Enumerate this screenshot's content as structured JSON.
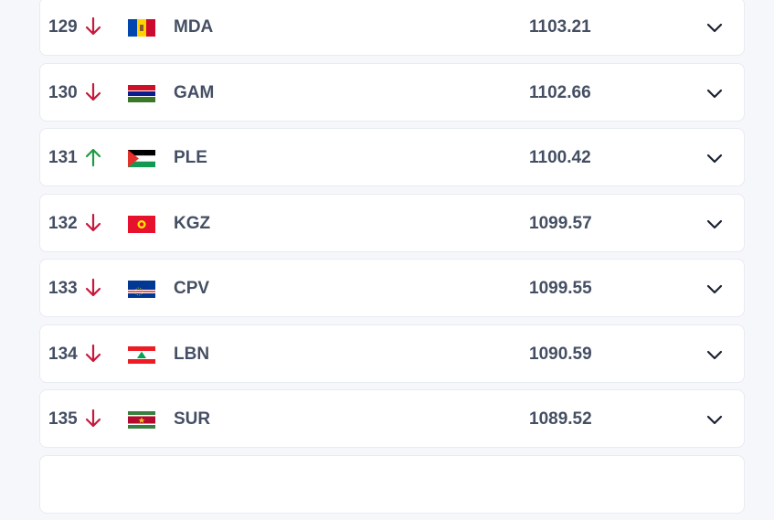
{
  "colors": {
    "down": "#c8183c",
    "up": "#1f9b45",
    "text": "#454f63"
  },
  "rows": [
    {
      "rank": "129",
      "trend": "down",
      "flag": "moldova-flag",
      "code": "MDA",
      "points": "1103.21"
    },
    {
      "rank": "130",
      "trend": "down",
      "flag": "gambia-flag",
      "code": "GAM",
      "points": "1102.66"
    },
    {
      "rank": "131",
      "trend": "up",
      "flag": "palestine-flag",
      "code": "PLE",
      "points": "1100.42"
    },
    {
      "rank": "132",
      "trend": "down",
      "flag": "kyrgyzstan-flag",
      "code": "KGZ",
      "points": "1099.57"
    },
    {
      "rank": "133",
      "trend": "down",
      "flag": "cape-verde-flag",
      "code": "CPV",
      "points": "1099.55"
    },
    {
      "rank": "134",
      "trend": "down",
      "flag": "lebanon-flag",
      "code": "LBN",
      "points": "1090.59"
    },
    {
      "rank": "135",
      "trend": "down",
      "flag": "suriname-flag",
      "code": "SUR",
      "points": "1089.52"
    },
    {
      "rank": "",
      "trend": "",
      "flag": "",
      "code": "",
      "points": ""
    }
  ]
}
